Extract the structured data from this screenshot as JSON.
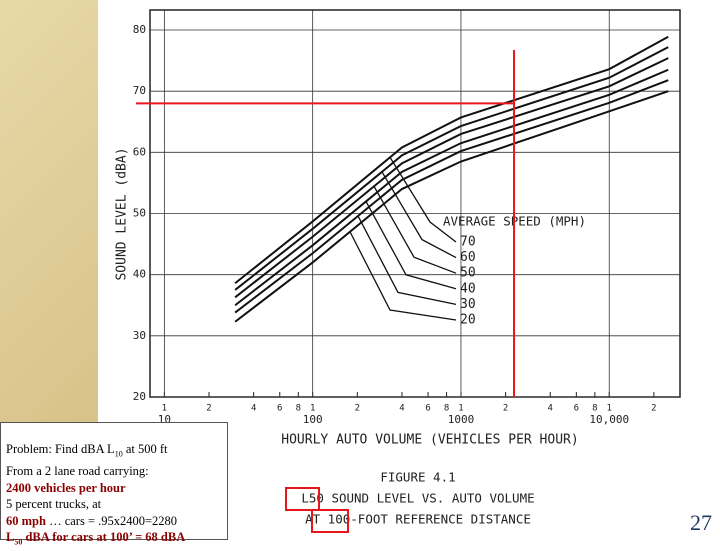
{
  "chart_data": {
    "type": "line",
    "y_label": "SOUND LEVEL (dBA)",
    "x_label": "HOURLY AUTO VOLUME (VEHICLES PER HOUR)",
    "legend_title": "AVERAGE SPEED (MPH)",
    "caption": [
      "FIGURE 4.1",
      "L50 SOUND LEVEL VS. AUTO VOLUME",
      "AT 100-FOOT REFERENCE DISTANCE"
    ],
    "log_x": true,
    "x": [
      30,
      100,
      400,
      1000,
      10000,
      25000
    ],
    "series": [
      {
        "name": "70",
        "color": "#111111",
        "values": [
          38.6,
          48.7,
          60.8,
          65.7,
          73.6,
          78.9
        ]
      },
      {
        "name": "60",
        "color": "#111111",
        "values": [
          37.5,
          47.5,
          59.5,
          64.3,
          72.2,
          77.2
        ]
      },
      {
        "name": "50",
        "color": "#111111",
        "values": [
          36.3,
          46.2,
          58.2,
          63,
          70.8,
          75.4
        ]
      },
      {
        "name": "40",
        "color": "#111111",
        "values": [
          35,
          44.8,
          56.8,
          61.5,
          69.4,
          73.5
        ]
      },
      {
        "name": "30",
        "color": "#111111",
        "values": [
          33.8,
          43.5,
          55.5,
          60.2,
          68.1,
          71.8
        ]
      },
      {
        "name": "20",
        "color": "#111111",
        "values": [
          32.3,
          42,
          54,
          58.5,
          66.7,
          70
        ]
      }
    ],
    "xlim": [
      8,
      30000
    ],
    "ylim": [
      20,
      80
    ],
    "yticks": [
      20,
      30,
      40,
      50,
      60,
      70,
      80
    ],
    "xticks": [
      {
        "value": 10,
        "label": "1"
      },
      {
        "value": 20,
        "label": "2"
      },
      {
        "value": 40,
        "label": "4"
      },
      {
        "value": 60,
        "label": "6"
      },
      {
        "value": 80,
        "label": "8"
      },
      {
        "value": 100,
        "label": "1"
      },
      {
        "value": 200,
        "label": "2"
      },
      {
        "value": 400,
        "label": "4"
      },
      {
        "value": 600,
        "label": "6"
      },
      {
        "value": 800,
        "label": "8"
      },
      {
        "value": 1000,
        "label": "1"
      },
      {
        "value": 2000,
        "label": "2"
      },
      {
        "value": 4000,
        "label": "4"
      },
      {
        "value": 6000,
        "label": "6"
      },
      {
        "value": 8000,
        "label": "8"
      },
      {
        "value": 10000,
        "label": "1"
      },
      {
        "value": 20000,
        "label": "2"
      }
    ],
    "xticks_major": [
      10,
      100,
      1000,
      {
        "value": 10000,
        "label": "10,000"
      }
    ],
    "grid": true,
    "reference_lines": {
      "x": 2280,
      "y": 68,
      "color": "#e8151b"
    }
  },
  "problem": {
    "lines": [
      [
        "Problem: Find dBA L",
        "10",
        " at 500 ft"
      ],
      [
        "From a 2 lane road carrying:"
      ],
      [
        "2400 vehicles per hour"
      ],
      [
        "5 percent trucks, at"
      ],
      [
        "60 mph",
        " … cars = .95x2400=2280"
      ],
      [
        "L",
        "50",
        " dBA for cars at 100’ = 68 dBA"
      ]
    ]
  },
  "slide_number": "27"
}
